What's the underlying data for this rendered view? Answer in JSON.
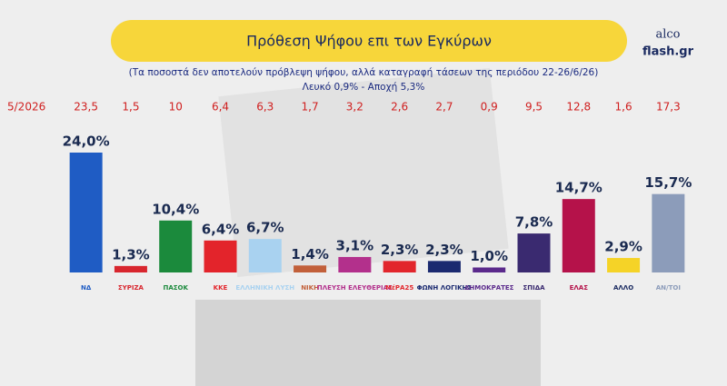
{
  "chart_data": {
    "type": "bar",
    "title": "Πρόθεση Ψήφου επι των Εγκύρων",
    "subtitle": "(Τα ποσοστά δεν αποτελούν πρόβλεψη ψήφου, αλλά καταγραφή τάσεων της περιόδου 22-26/6/26)",
    "note": "Λευκό 0,9% - Αποχή 5,3%",
    "brand": [
      "alco",
      "flash.gr"
    ],
    "categories": [
      "ΝΔ",
      "ΣΥΡΙΖΑ",
      "ΠΑΣΟΚ",
      "ΚΚΕ",
      "ΕΛΛΗΝΙΚΗ ΛΥΣΗ",
      "ΝΙΚΗ",
      "ΠΛΕΥΣΗ ΕΛΕΥΘΕΡΙΑΣ",
      "ΜέΡΑ25",
      "ΦΩΝΗ ΛΟΓΙΚΗΣ",
      "ΔΗΜΟΚΡΑΤΕΣ",
      "ΣΠΙΔΑ",
      "ΕΛΑΣ",
      "ΑΛΛΟ",
      "ΑΝ/ΤΟΙ"
    ],
    "values": [
      24.0,
      1.3,
      10.4,
      6.4,
      6.7,
      1.4,
      3.1,
      2.3,
      2.3,
      1.0,
      7.8,
      14.7,
      2.9,
      15.7
    ],
    "value_labels": [
      "24,0%",
      "1,3%",
      "10,4%",
      "6,4%",
      "6,7%",
      "1,4%",
      "3,1%",
      "2,3%",
      "2,3%",
      "1,0%",
      "7,8%",
      "14,7%",
      "2,9%",
      "15,7%"
    ],
    "colors": [
      "#1f5cc4",
      "#d8262e",
      "#1b8a3c",
      "#e3242b",
      "#a9d2f0",
      "#c2603a",
      "#b3308c",
      "#e2262c",
      "#1b2a70",
      "#5b2a8c",
      "#3a2a70",
      "#b5124a",
      "#f5d327",
      "#8c9cba"
    ],
    "previous": {
      "label": "5/2026",
      "values": [
        23.5,
        1.5,
        10,
        6.4,
        6.3,
        1.7,
        3.2,
        2.6,
        2.7,
        0.9,
        9.5,
        12.8,
        1.6,
        17.3
      ],
      "value_labels": [
        "23,5",
        "1,5",
        "10",
        "6,4",
        "6,3",
        "1,7",
        "3,2",
        "2,6",
        "2,7",
        "0,9",
        "9,5",
        "12,8",
        "1,6",
        "17,3"
      ]
    }
  }
}
